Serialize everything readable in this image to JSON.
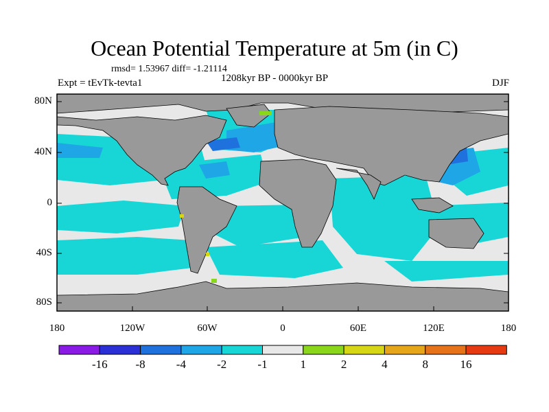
{
  "title": "Ocean Potential Temperature at 5m (in C)",
  "stats": "rmsd= 1.53967 diff= -1.21114",
  "left_string": "Expt = tEvTk-tevta1",
  "center_string": "1208kyr BP - 0000kyr BP",
  "right_string": "DJF",
  "lat_ticks": [
    "80N",
    "40N",
    "0",
    "40S",
    "80S"
  ],
  "lon_ticks": [
    "180",
    "120W",
    "60W",
    "0",
    "60E",
    "120E",
    "180"
  ],
  "colorbar": {
    "labels": [
      "-16",
      "-8",
      "-4",
      "-2",
      "-1",
      "1",
      "2",
      "4",
      "8",
      "16"
    ],
    "colors": [
      "#8a1ae6",
      "#2a30d6",
      "#1f72de",
      "#1ea6e6",
      "#18d6d6",
      "#e8e8e8",
      "#8ad61a",
      "#d6d616",
      "#e6a61a",
      "#e6721a",
      "#e63a12"
    ]
  },
  "colors": {
    "land": "#999999",
    "near_zero": "#e8e8e8",
    "minus_one_two": "#18d6d6",
    "minus_two_four": "#1ea6e6",
    "minus_four_eight": "#1f72de"
  }
}
